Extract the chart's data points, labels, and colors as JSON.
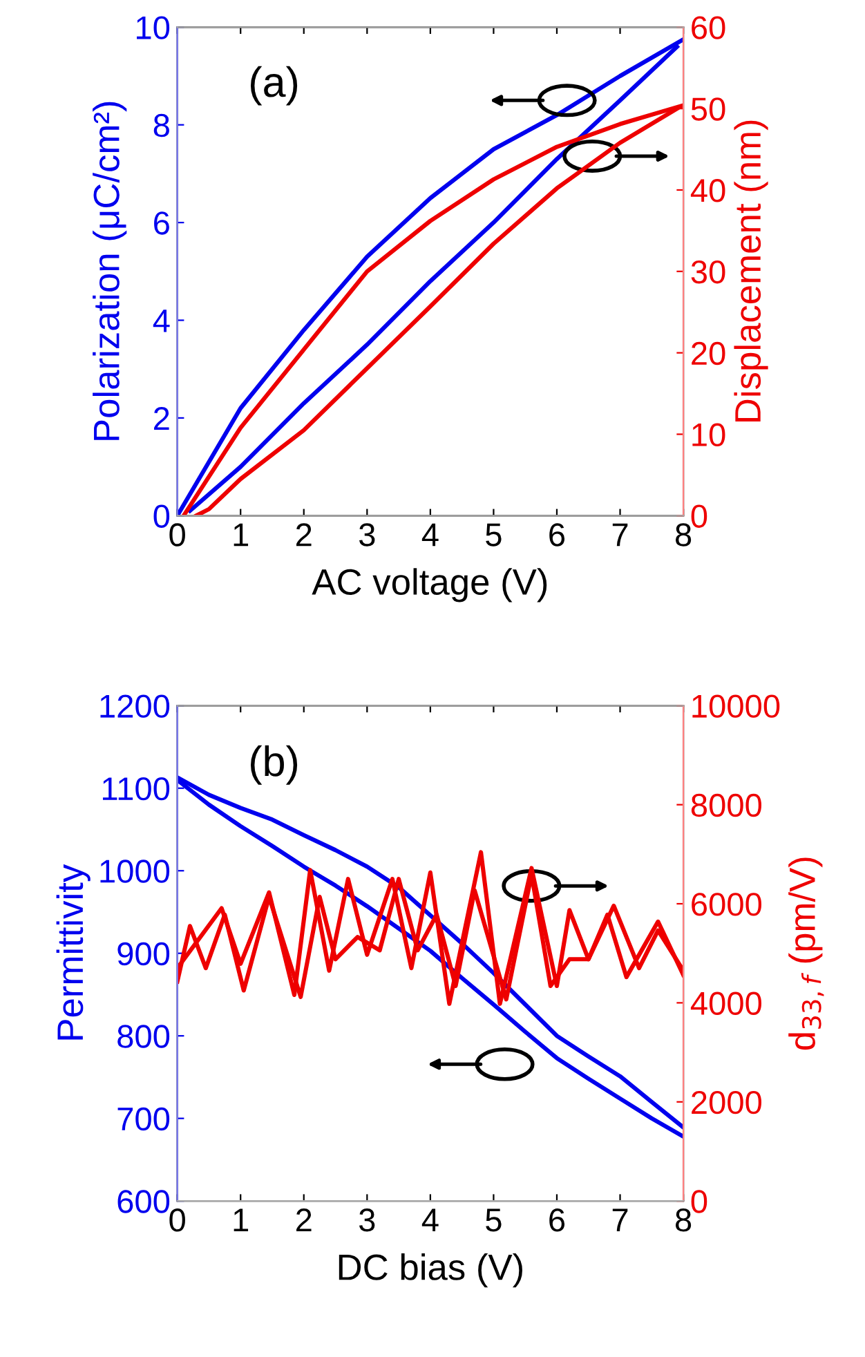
{
  "chart_data": [
    {
      "type": "line",
      "xlabel": "AC voltage (V)",
      "ylabel": "Polarization (μC/cm²)",
      "y2label": "Displacement (nm)",
      "annotations": [
        "(a)"
      ],
      "xlim": [
        0,
        8
      ],
      "xticks": [
        0,
        1,
        2,
        3,
        4,
        5,
        6,
        7,
        8
      ],
      "ylim": [
        0,
        10
      ],
      "yticks": [
        0,
        2,
        4,
        6,
        8,
        10
      ],
      "y2lim": [
        0,
        60
      ],
      "y2ticks": [
        0,
        10,
        20,
        30,
        40,
        50,
        60
      ],
      "series": [
        {
          "color": "#0000ee",
          "axis": "y",
          "x": [
            0,
            1,
            2,
            3,
            4,
            5,
            6,
            7,
            8
          ],
          "values": [
            0,
            2.2,
            3.8,
            5.3,
            6.5,
            7.5,
            8.2,
            9.0,
            9.75
          ]
        },
        {
          "color": "#0000ee",
          "axis": "y",
          "x": [
            0.2,
            1,
            2,
            3,
            4,
            5,
            6,
            7,
            7.9
          ],
          "values": [
            0.1,
            1.0,
            2.3,
            3.5,
            4.8,
            6.0,
            7.3,
            8.5,
            9.6
          ]
        },
        {
          "color": "#ee0000",
          "axis": "y2",
          "x": [
            0.1,
            1,
            2,
            3,
            4,
            5,
            6,
            7,
            8
          ],
          "values": [
            0,
            10.8,
            20.4,
            30,
            36.2,
            41.3,
            45.3,
            48.1,
            50.4
          ]
        },
        {
          "color": "#ee0000",
          "axis": "y2",
          "x": [
            0.3,
            0.5,
            1,
            2,
            3,
            4,
            5,
            6,
            7,
            7.9
          ],
          "values": [
            0,
            0.8,
            4.5,
            10.5,
            18.1,
            25.7,
            33.4,
            40.2,
            45.8,
            50
          ]
        }
      ]
    },
    {
      "type": "line",
      "xlabel": "DC bias (V)",
      "ylabel": "Permittivity",
      "y2label": "d$_{33,f}$ (pm/V)",
      "annotations": [
        "(b)"
      ],
      "xlim": [
        0,
        8
      ],
      "xticks": [
        0,
        1,
        2,
        3,
        4,
        5,
        6,
        7,
        8
      ],
      "ylim": [
        600,
        1200
      ],
      "yticks": [
        600,
        700,
        800,
        900,
        1000,
        1100,
        1200
      ],
      "y2lim": [
        0,
        10000
      ],
      "y2ticks": [
        0,
        2000,
        4000,
        6000,
        8000,
        10000
      ],
      "series": [
        {
          "color": "#0000ee",
          "axis": "y",
          "x": [
            0,
            0.5,
            1,
            1.5,
            2,
            2.5,
            3,
            3.5,
            4,
            4.5,
            5,
            5.5,
            6,
            6.5,
            7,
            7.5,
            8
          ],
          "values": [
            1113,
            1092,
            1076,
            1062,
            1043,
            1025,
            1005,
            980,
            946,
            912,
            876,
            838,
            800,
            775,
            751,
            720,
            689
          ]
        },
        {
          "color": "#0000ee",
          "axis": "y",
          "x": [
            0,
            0.5,
            1,
            1.5,
            2,
            2.5,
            3,
            3.5,
            4,
            4.5,
            5,
            5.5,
            6,
            6.5,
            7,
            7.5,
            8
          ],
          "values": [
            1110,
            1080,
            1054,
            1030,
            1005,
            982,
            957,
            930,
            903,
            870,
            838,
            805,
            773,
            748,
            724,
            700,
            678
          ]
        },
        {
          "color": "#ee0000",
          "axis": "y2",
          "x": [
            0,
            0.7,
            1.0,
            1.45,
            1.85,
            2.1,
            2.4,
            2.7,
            3.0,
            3.4,
            3.7,
            4.0,
            4.3,
            4.8,
            5.1,
            5.6,
            6.0,
            6.2,
            6.5,
            6.8,
            7.1,
            7.6,
            8
          ],
          "values": [
            4700,
            5910,
            4790,
            6230,
            4160,
            6680,
            4650,
            6500,
            4970,
            6500,
            4700,
            6630,
            3980,
            7040,
            3980,
            6720,
            4340,
            5870,
            4880,
            5780,
            4520,
            5640,
            4560
          ]
        },
        {
          "color": "#ee0000",
          "axis": "y2",
          "x": [
            0,
            0.2,
            0.45,
            0.75,
            1.05,
            1.45,
            1.95,
            2.25,
            2.5,
            2.85,
            3.2,
            3.5,
            3.8,
            4.1,
            4.4,
            4.7,
            5.2,
            5.6,
            5.9,
            6.2,
            6.5,
            6.9,
            7.3,
            7.6,
            8
          ],
          "values": [
            4430,
            5550,
            4700,
            5780,
            4250,
            6140,
            4120,
            6140,
            4880,
            5330,
            5060,
            6500,
            5060,
            5780,
            4340,
            6270,
            4070,
            6590,
            4340,
            4880,
            4880,
            5960,
            4700,
            5460,
            4650
          ]
        }
      ]
    }
  ]
}
